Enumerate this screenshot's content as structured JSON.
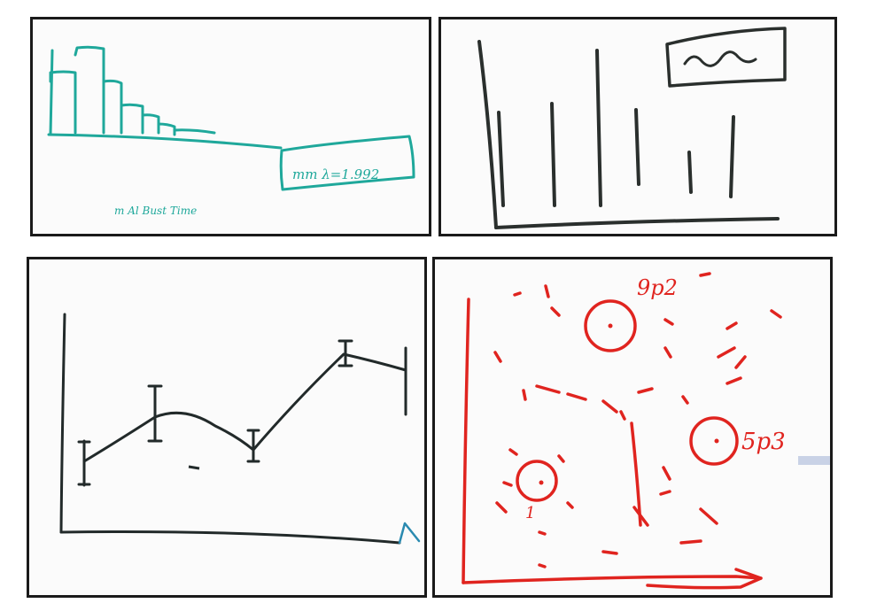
{
  "panels": {
    "histogram": {
      "legend_text": "mm λ=1.992",
      "caption_text": "m Al Bust Time",
      "color": "#1fa89b"
    },
    "bar_sketch": {
      "color": "#2a2f2d"
    },
    "line_sketch": {
      "color": "#222a2a"
    },
    "scatter_sketch": {
      "labels": [
        "9p2",
        "5p3",
        "1"
      ],
      "color": "#e0241f"
    }
  }
}
